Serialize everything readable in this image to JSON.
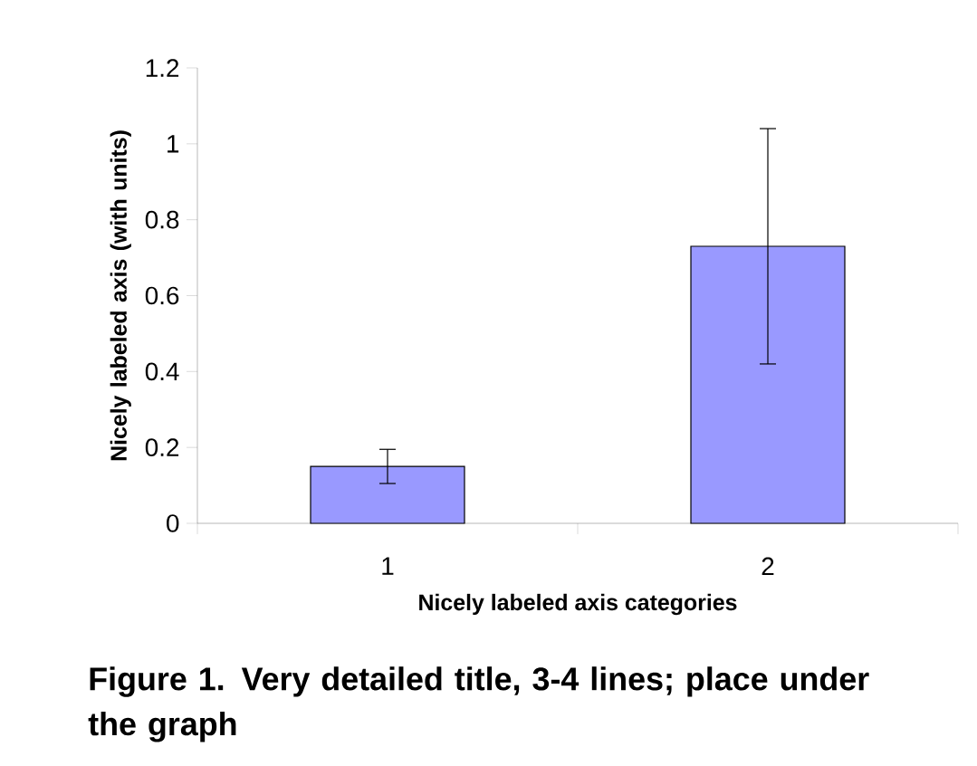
{
  "chart_data": {
    "type": "bar",
    "title": "Figure 1.  Very detailed title, 3-4 lines; place under the graph",
    "xlabel": "Nicely labeled axis categories",
    "ylabel": "Nicely labeled axis (with units)",
    "categories": [
      "1",
      "2"
    ],
    "values": [
      0.15,
      0.73
    ],
    "errors": [
      0.045,
      0.31
    ],
    "color": "#9999ff",
    "ylim": [
      0,
      1.2
    ],
    "yticks": [
      0,
      0.2,
      0.4,
      0.6,
      0.8,
      1,
      1.2
    ]
  }
}
